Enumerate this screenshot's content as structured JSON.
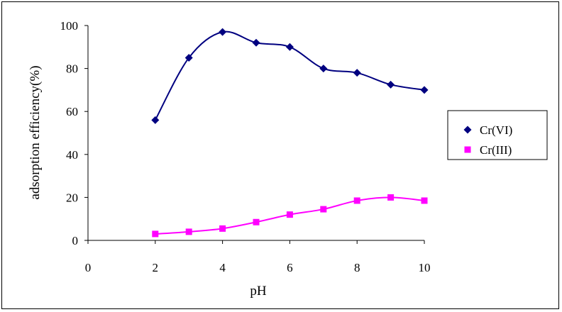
{
  "chart_data": {
    "type": "line",
    "title": "",
    "xlabel": "pH",
    "ylabel": "adsorption efficiency(%)",
    "xlim": [
      0,
      10
    ],
    "ylim": [
      0,
      100
    ],
    "x_ticks": [
      0,
      2,
      4,
      6,
      8,
      10
    ],
    "y_ticks": [
      0,
      20,
      40,
      60,
      80,
      100
    ],
    "x_tick_labels": [
      "0",
      "2",
      "4",
      "6",
      "8",
      "10"
    ],
    "y_tick_labels": [
      "0",
      "20",
      "40",
      "60",
      "80",
      "100"
    ],
    "grid": false,
    "legend_position": "right",
    "series": [
      {
        "name": "Cr(VI)",
        "marker": "diamond",
        "line_color": "#000080",
        "marker_color": "#000080",
        "x": [
          2,
          3,
          4,
          5,
          6,
          7,
          8,
          9,
          10
        ],
        "y": [
          56,
          85,
          97,
          92,
          90,
          80,
          78,
          72.5,
          70
        ]
      },
      {
        "name": "Cr(III)",
        "marker": "square",
        "line_color": "#ff00ff",
        "marker_color": "#ff00ff",
        "x": [
          2,
          3,
          4,
          5,
          6,
          7,
          8,
          9,
          10
        ],
        "y": [
          3,
          4,
          5.5,
          8.5,
          12,
          14.5,
          18.5,
          20,
          18.5
        ]
      }
    ]
  }
}
